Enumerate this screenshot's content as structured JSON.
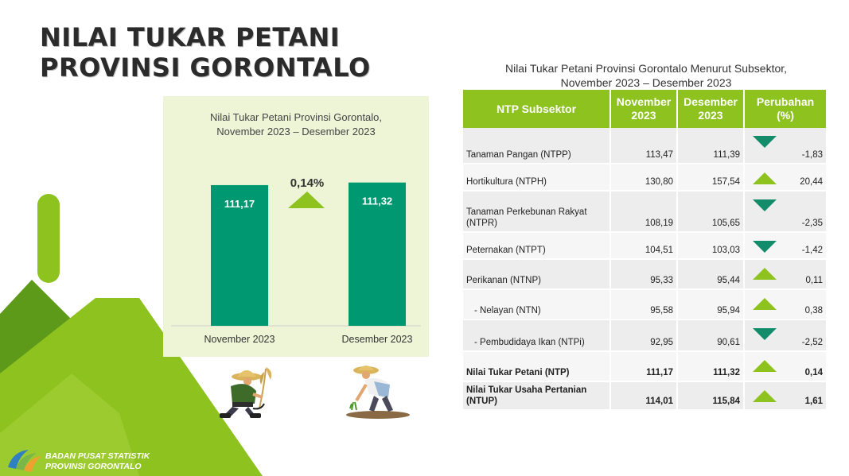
{
  "page": {
    "title_line1": "NILAI TUKAR PETANI",
    "title_line2": "PROVINSI GORONTALO"
  },
  "colors": {
    "bar": "#009870",
    "accent_green": "#8dc21f",
    "dark_green": "#5e9a1a",
    "triangle_down": "#138c6c",
    "panel_bg": "#eef5d6"
  },
  "chart_data": {
    "type": "bar",
    "title_line1": "Nilai Tukar Petani Provinsi Gorontalo,",
    "title_line2": "November 2023 – Desember 2023",
    "categories": [
      "November 2023",
      "Desember 2023"
    ],
    "values": [
      111.17,
      111.32
    ],
    "value_labels": [
      "111,17",
      "111,32"
    ],
    "change_label": "0,14%",
    "change_direction": "up",
    "grid": false,
    "legend": "none"
  },
  "table": {
    "title_line1": "Nilai Tukar Petani Provinsi Gorontalo Menurut Subsektor,",
    "title_line2": "November 2023 – Desember 2023",
    "headers": {
      "subsektor": "NTP Subsektor",
      "nov_line1": "November",
      "nov_line2": "2023",
      "des_line1": "Desember",
      "des_line2": "2023",
      "chg_line1": "Perubahan",
      "chg_line2": "(%)"
    },
    "rows": [
      {
        "label": "Tanaman Pangan (NTPP)",
        "nov": "113,47",
        "des": "111,39",
        "change": "-1,83",
        "direction": "down"
      },
      {
        "label": "Hortikultura (NTPH)",
        "nov": "130,80",
        "des": "157,54",
        "change": "20,44",
        "direction": "up"
      },
      {
        "label": "Tanaman Perkebunan Rakyat (NTPR)",
        "nov": "108,19",
        "des": "105,65",
        "change": "-2,35",
        "direction": "down"
      },
      {
        "label": "Peternakan (NTPT)",
        "nov": "104,51",
        "des": "103,03",
        "change": "-1,42",
        "direction": "down"
      },
      {
        "label": "Perikanan (NTNP)",
        "nov": "95,33",
        "des": "95,44",
        "change": "0,11",
        "direction": "up"
      },
      {
        "label": "- Nelayan (NTN)",
        "nov": "95,58",
        "des": "95,94",
        "change": "0,38",
        "direction": "up"
      },
      {
        "label": "- Pembudidaya Ikan (NTPi)",
        "nov": "92,95",
        "des": "90,61",
        "change": "-2,52",
        "direction": "down"
      },
      {
        "label": "Nilai Tukar Petani (NTP)",
        "nov": "111,17",
        "des": "111,32",
        "change": "0,14",
        "direction": "up"
      },
      {
        "label": "Nilai Tukar Usaha Pertanian (NTUP)",
        "nov": "114,01",
        "des": "115,84",
        "change": "1,61",
        "direction": "up"
      }
    ]
  },
  "footer": {
    "org_line1": "BADAN PUSAT STATISTIK",
    "org_line2": "PROVINSI GORONTALO"
  },
  "icons": {
    "logo": "bps-logo-icon",
    "farmer_harvest": "farmer-harvesting-icon",
    "farmer_plant": "farmer-planting-icon",
    "up": "triangle-up-icon",
    "down": "triangle-down-icon"
  }
}
